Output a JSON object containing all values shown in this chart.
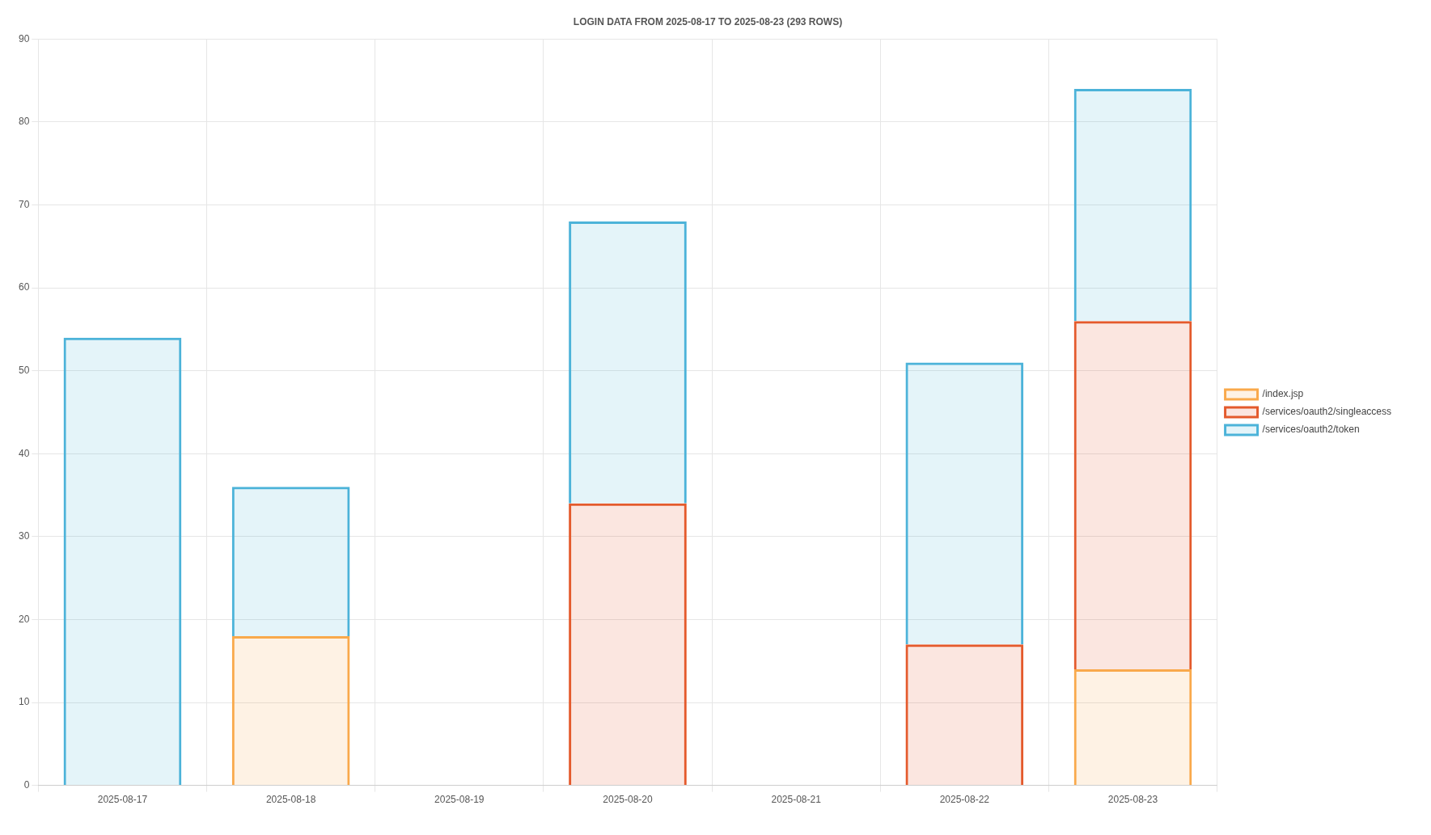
{
  "chart_data": {
    "type": "bar",
    "title": "LOGIN DATA FROM 2025-08-17 TO 2025-08-23 (293 ROWS)",
    "categories": [
      "2025-08-17",
      "2025-08-18",
      "2025-08-19",
      "2025-08-20",
      "2025-08-21",
      "2025-08-22",
      "2025-08-23"
    ],
    "series": [
      {
        "name": "/index.jsp",
        "color": "#f9a94b",
        "values": [
          null,
          18,
          null,
          null,
          null,
          null,
          14
        ]
      },
      {
        "name": "/services/oauth2/singleaccess",
        "color": "#e45a2c",
        "values": [
          null,
          null,
          null,
          34,
          null,
          17,
          42
        ]
      },
      {
        "name": "/services/oauth2/token",
        "color": "#4cb3d9",
        "values": [
          54,
          18,
          null,
          34,
          null,
          34,
          28
        ]
      }
    ],
    "stacked": true,
    "ylim": [
      0,
      90
    ],
    "yticks": [
      0,
      10,
      20,
      30,
      40,
      50,
      60,
      70,
      80,
      90
    ],
    "grid": true,
    "legend": "right"
  }
}
